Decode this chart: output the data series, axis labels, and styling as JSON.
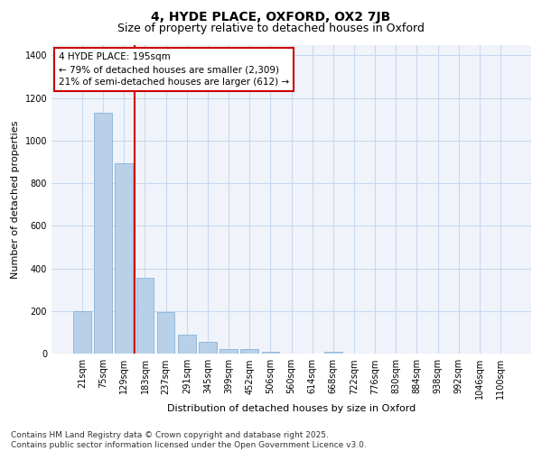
{
  "title": "4, HYDE PLACE, OXFORD, OX2 7JB",
  "subtitle": "Size of property relative to detached houses in Oxford",
  "xlabel": "Distribution of detached houses by size in Oxford",
  "ylabel": "Number of detached properties",
  "categories": [
    "21sqm",
    "75sqm",
    "129sqm",
    "183sqm",
    "237sqm",
    "291sqm",
    "345sqm",
    "399sqm",
    "452sqm",
    "506sqm",
    "560sqm",
    "614sqm",
    "668sqm",
    "722sqm",
    "776sqm",
    "830sqm",
    "884sqm",
    "938sqm",
    "992sqm",
    "1046sqm",
    "1100sqm"
  ],
  "values": [
    200,
    1130,
    895,
    355,
    195,
    90,
    58,
    22,
    22,
    10,
    0,
    0,
    8,
    0,
    0,
    0,
    0,
    0,
    0,
    0,
    0
  ],
  "bar_color": "#b8d0e8",
  "bar_edge_color": "#7aaad4",
  "vline_position": 2.5,
  "vline_color": "#cc0000",
  "ylim_max": 1450,
  "yticks": [
    0,
    200,
    400,
    600,
    800,
    1000,
    1200,
    1400
  ],
  "annotation_title": "4 HYDE PLACE: 195sqm",
  "annotation_line1": "← 79% of detached houses are smaller (2,309)",
  "annotation_line2": "21% of semi-detached houses are larger (612) →",
  "bg_color": "#f0f4fa",
  "grid_color": "#c8d8f0",
  "title_fontsize": 10,
  "subtitle_fontsize": 9,
  "tick_fontsize": 7,
  "ylabel_fontsize": 8,
  "xlabel_fontsize": 8,
  "annotation_fontsize": 7.5,
  "footer_fontsize": 6.5,
  "footer1": "Contains HM Land Registry data © Crown copyright and database right 2025.",
  "footer2": "Contains public sector information licensed under the Open Government Licence v3.0."
}
